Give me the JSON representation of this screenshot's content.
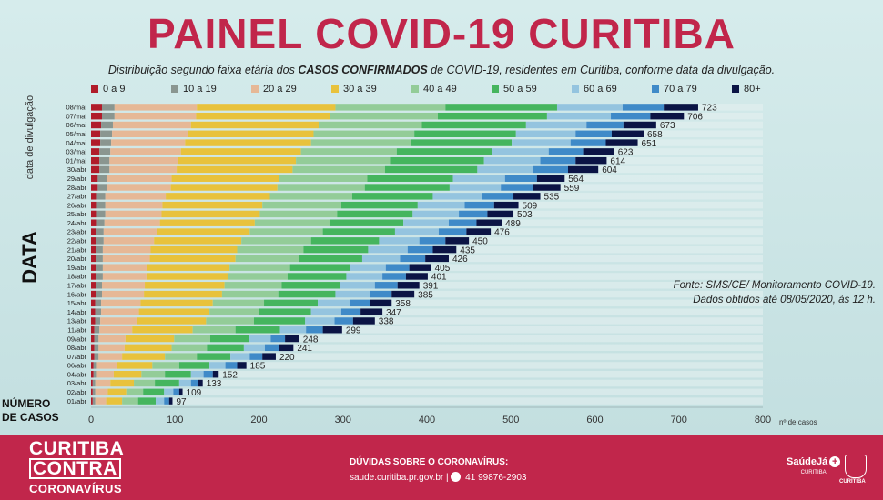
{
  "header": {
    "title": "PAINEL COVID-19 CURITIBA",
    "subtitle_pre": "Distribuição segundo faixa etária dos ",
    "subtitle_bold": "CASOS CONFIRMADOS",
    "subtitle_post": " de COVID-19, residentes em Curitiba, conforme data da divulgação."
  },
  "axis_text": {
    "y_axis_title": "data de divulgação",
    "data_label": "DATA",
    "numero_line1": "NÚMERO",
    "numero_line2": "DE CASOS",
    "x_unit": "nº de casos"
  },
  "source": {
    "line1": "Fonte: SMS/CE/ Monitoramento COVID-19.",
    "line2": "Dados obtidos  até  08/05/2020, às 12 h."
  },
  "footer": {
    "campaign_line1": "CURITIBA",
    "campaign_line2": "CONTRA",
    "campaign_line3": "CORONAVÍRUS",
    "help_title": "DÚVIDAS SOBRE O CORONAVÍRUS:",
    "help_site": "saude.curitiba.pr.gov.br",
    "help_sep": "|",
    "help_phone": "41 99876-2903",
    "logo_text": "SaúdeJá",
    "logo_sub": "CURITIBA",
    "coa_label": "CURITIBA"
  },
  "colors": {
    "title": "#c1264b",
    "footer": "#c1264b",
    "age_groups": [
      "#b01c2a",
      "#8a9690",
      "#e6b896",
      "#e8c23c",
      "#93cc98",
      "#45b55e",
      "#94c4df",
      "#3f8ac8",
      "#0b1445"
    ]
  },
  "chart_data": {
    "type": "bar",
    "orientation": "horizontal",
    "stacked": true,
    "categories": [
      "08/mai",
      "07/mai",
      "06/mai",
      "05/mai",
      "04/mai",
      "03/mai",
      "01/mai",
      "30/abr",
      "29/abr",
      "28/abr",
      "27/abr",
      "26/abr",
      "25/abr",
      "24/abr",
      "23/abr",
      "22/abr",
      "21/abr",
      "20/abr",
      "19/abr",
      "18/abr",
      "17/abr",
      "16/abr",
      "15/abr",
      "14/abr",
      "13/abr",
      "11/abr",
      "09/abr",
      "08/abr",
      "07/abr",
      "06/abr",
      "04/abr",
      "03/abr",
      "02/abr",
      "01/abr"
    ],
    "totals": [
      723,
      706,
      673,
      658,
      651,
      623,
      614,
      604,
      564,
      559,
      535,
      509,
      503,
      489,
      476,
      450,
      435,
      426,
      405,
      401,
      391,
      385,
      358,
      347,
      338,
      299,
      248,
      241,
      220,
      185,
      152,
      133,
      109,
      97
    ],
    "series_names": [
      "0 a 9",
      "10 a 19",
      "20 a 29",
      "30 a 39",
      "40 a 49",
      "50 a 59",
      "60 a 69",
      "70 a 79",
      "80+"
    ],
    "series": [
      {
        "name": "0 a 9",
        "values": [
          13,
          13,
          12,
          11,
          11,
          10,
          10,
          10,
          8,
          8,
          7,
          7,
          7,
          7,
          6,
          6,
          6,
          6,
          6,
          6,
          6,
          6,
          5,
          5,
          5,
          4,
          4,
          4,
          4,
          3,
          3,
          2,
          2,
          2
        ]
      },
      {
        "name": "10 a 19",
        "values": [
          15,
          15,
          14,
          14,
          13,
          13,
          12,
          12,
          11,
          11,
          10,
          10,
          10,
          9,
          9,
          9,
          8,
          8,
          8,
          8,
          7,
          7,
          7,
          7,
          6,
          6,
          5,
          5,
          5,
          4,
          4,
          3,
          3,
          3
        ]
      },
      {
        "name": "20 a 29",
        "values": [
          98,
          97,
          93,
          90,
          88,
          84,
          82,
          80,
          77,
          76,
          72,
          68,
          67,
          66,
          64,
          60,
          57,
          56,
          53,
          52,
          51,
          50,
          47,
          45,
          44,
          39,
          32,
          31,
          28,
          24,
          20,
          18,
          15,
          13
        ]
      },
      {
        "name": "30 a 39",
        "values": [
          165,
          160,
          152,
          150,
          150,
          143,
          140,
          138,
          128,
          127,
          124,
          119,
          117,
          113,
          110,
          104,
          103,
          102,
          98,
          97,
          95,
          93,
          86,
          84,
          82,
          72,
          58,
          56,
          51,
          42,
          33,
          28,
          22,
          19
        ]
      },
      {
        "name": "40 a 49",
        "values": [
          131,
          128,
          123,
          120,
          119,
          114,
          112,
          110,
          105,
          104,
          98,
          94,
          92,
          89,
          87,
          83,
          79,
          76,
          72,
          71,
          68,
          67,
          61,
          59,
          57,
          51,
          43,
          42,
          38,
          32,
          28,
          25,
          20,
          19
        ]
      },
      {
        "name": "50 a 59",
        "values": [
          133,
          130,
          124,
          121,
          120,
          114,
          112,
          110,
          102,
          101,
          96,
          91,
          90,
          88,
          86,
          81,
          77,
          75,
          71,
          70,
          69,
          68,
          64,
          62,
          61,
          53,
          46,
          44,
          40,
          36,
          31,
          29,
          25,
          21
        ]
      },
      {
        "name": "60 a 69",
        "values": [
          78,
          76,
          72,
          71,
          70,
          67,
          67,
          66,
          62,
          61,
          59,
          56,
          55,
          54,
          52,
          48,
          47,
          45,
          43,
          43,
          42,
          41,
          38,
          36,
          35,
          31,
          26,
          25,
          23,
          19,
          15,
          14,
          11,
          10
        ]
      },
      {
        "name": "70 a 79",
        "values": [
          49,
          47,
          44,
          43,
          42,
          41,
          42,
          42,
          38,
          38,
          37,
          35,
          34,
          33,
          33,
          31,
          30,
          30,
          28,
          28,
          27,
          26,
          24,
          23,
          22,
          20,
          17,
          17,
          15,
          14,
          11,
          8,
          7,
          6
        ]
      },
      {
        "name": "80+",
        "values": [
          41,
          40,
          39,
          38,
          38,
          37,
          37,
          36,
          33,
          33,
          32,
          29,
          31,
          30,
          29,
          28,
          28,
          28,
          26,
          26,
          26,
          27,
          26,
          26,
          26,
          23,
          17,
          17,
          16,
          11,
          7,
          6,
          4,
          4
        ]
      }
    ],
    "xlim": [
      0,
      800
    ],
    "xticks": [
      0,
      100,
      200,
      300,
      400,
      500,
      600,
      700,
      800
    ],
    "legend_position": "top",
    "grid": false
  }
}
